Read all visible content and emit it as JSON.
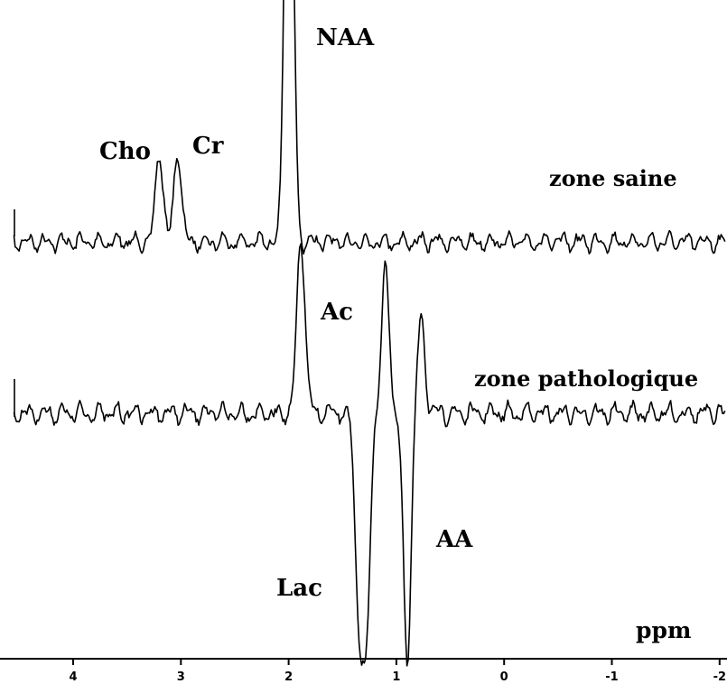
{
  "chart_data": {
    "type": "line",
    "title": "",
    "xlabel": "ppm",
    "ylabel": "",
    "x_reversed": true,
    "xlim": [
      4.5,
      -2
    ],
    "x_ticks": [
      "4",
      "3",
      "2",
      "1",
      "0",
      "-1",
      "-2"
    ],
    "x_tick_values": [
      4,
      3,
      2,
      1,
      0,
      -1,
      -2
    ],
    "grid": false,
    "series": [
      {
        "name": "zone saine",
        "peaks": [
          {
            "x": 3.2,
            "y": 0.55
          },
          {
            "x": 3.03,
            "y": 0.55
          },
          {
            "x": 2.0,
            "y": 1.4
          },
          {
            "x": 2.01,
            "y": 1.4
          },
          {
            "x": 1.98,
            "y": 1.3
          }
        ]
      },
      {
        "name": "zone pathologique",
        "peaks": [
          {
            "x": 1.9,
            "y": 0.55
          },
          {
            "x": 1.87,
            "y": 0.55
          },
          {
            "x": 1.35,
            "y": -1.1
          },
          {
            "x": 1.28,
            "y": -1.3
          },
          {
            "x": 1.1,
            "y": 0.85
          },
          {
            "x": 0.9,
            "y": -1.45
          },
          {
            "x": 0.77,
            "y": 0.55
          }
        ]
      }
    ],
    "annotations": [
      {
        "text": "NAA",
        "x": 1.75
      },
      {
        "text": "Cho",
        "x": 3.5
      },
      {
        "text": "Cr",
        "x": 2.85
      },
      {
        "text": "Ac",
        "x": 1.65
      },
      {
        "text": "Lac",
        "x": 1.85
      },
      {
        "text": "AA",
        "x": 0.7
      }
    ]
  }
}
